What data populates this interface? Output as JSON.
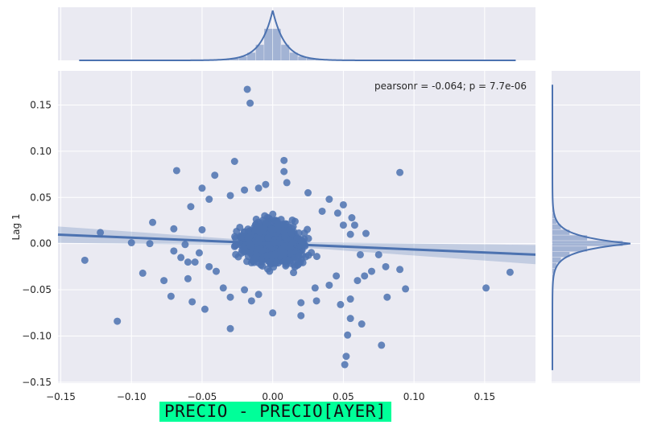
{
  "chart_data": {
    "type": "scatter",
    "annotation": "pearsonr = -0.064; p = 7.7e-06",
    "xlabel": "",
    "ylabel": "Lag 1",
    "xlim": [
      -0.152,
      0.186
    ],
    "ylim": [
      -0.151,
      0.187
    ],
    "x_ticks": [
      -0.15,
      -0.1,
      -0.05,
      0.0,
      0.05,
      0.1,
      0.15
    ],
    "x_tick_labels": [
      "−0.15",
      "−0.10",
      "−0.05",
      "0.00",
      "0.05",
      "0.10",
      "0.15"
    ],
    "y_ticks": [
      -0.15,
      -0.1,
      -0.05,
      0.0,
      0.05,
      0.1,
      0.15
    ],
    "y_tick_labels": [
      "−0.15",
      "−0.10",
      "−0.05",
      "0.00",
      "0.05",
      "0.10",
      "0.15"
    ],
    "grid": true,
    "regression_line": {
      "slope": -0.064,
      "intercept": 0.0,
      "x_range": [
        -0.152,
        0.186
      ]
    },
    "points": [
      [
        -0.018,
        0.167
      ],
      [
        -0.016,
        0.152
      ],
      [
        -0.027,
        0.089
      ],
      [
        0.008,
        0.09
      ],
      [
        0.09,
        0.077
      ],
      [
        -0.068,
        0.079
      ],
      [
        -0.041,
        0.074
      ],
      [
        -0.05,
        0.06
      ],
      [
        -0.045,
        0.048
      ],
      [
        -0.058,
        0.04
      ],
      [
        -0.085,
        0.023
      ],
      [
        -0.07,
        0.016
      ],
      [
        -0.122,
        0.012
      ],
      [
        -0.1,
        0.001
      ],
      [
        -0.087,
        0.0
      ],
      [
        -0.062,
        -0.001
      ],
      [
        -0.07,
        -0.008
      ],
      [
        -0.065,
        -0.015
      ],
      [
        -0.06,
        -0.02
      ],
      [
        -0.133,
        -0.018
      ],
      [
        -0.092,
        -0.032
      ],
      [
        -0.077,
        -0.04
      ],
      [
        -0.06,
        -0.038
      ],
      [
        -0.072,
        -0.057
      ],
      [
        -0.057,
        -0.063
      ],
      [
        -0.048,
        -0.071
      ],
      [
        -0.11,
        -0.084
      ],
      [
        -0.03,
        -0.092
      ],
      [
        0.0,
        -0.075
      ],
      [
        0.02,
        -0.078
      ],
      [
        0.031,
        -0.062
      ],
      [
        0.048,
        -0.066
      ],
      [
        0.055,
        -0.081
      ],
      [
        0.063,
        -0.087
      ],
      [
        0.053,
        -0.099
      ],
      [
        0.052,
        -0.122
      ],
      [
        0.051,
        -0.131
      ],
      [
        0.077,
        -0.11
      ],
      [
        0.081,
        -0.058
      ],
      [
        0.094,
        -0.049
      ],
      [
        0.151,
        -0.048
      ],
      [
        0.168,
        -0.031
      ],
      [
        0.07,
        -0.03
      ],
      [
        0.08,
        -0.025
      ],
      [
        0.09,
        -0.028
      ],
      [
        0.075,
        -0.012
      ],
      [
        0.055,
        0.01
      ],
      [
        0.056,
        0.028
      ],
      [
        0.066,
        0.011
      ],
      [
        0.046,
        0.033
      ],
      [
        0.05,
        0.042
      ],
      [
        0.04,
        0.048
      ],
      [
        0.025,
        0.055
      ],
      [
        0.008,
        0.078
      ],
      [
        -0.01,
        0.06
      ],
      [
        -0.02,
        0.058
      ],
      [
        -0.03,
        0.052
      ],
      [
        0.035,
        0.035
      ],
      [
        0.04,
        -0.045
      ],
      [
        0.03,
        -0.048
      ],
      [
        -0.01,
        -0.055
      ],
      [
        -0.02,
        -0.05
      ],
      [
        -0.035,
        -0.048
      ],
      [
        0.06,
        -0.04
      ],
      [
        0.065,
        -0.035
      ],
      [
        0.045,
        -0.035
      ],
      [
        -0.04,
        -0.03
      ],
      [
        -0.045,
        -0.025
      ],
      [
        0.05,
        0.02
      ],
      [
        -0.05,
        0.015
      ],
      [
        0.062,
        -0.012
      ],
      [
        0.058,
        0.02
      ],
      [
        -0.052,
        -0.01
      ],
      [
        -0.055,
        -0.02
      ],
      [
        0.01,
        0.066
      ],
      [
        -0.005,
        0.064
      ],
      [
        0.02,
        -0.064
      ],
      [
        -0.015,
        -0.062
      ],
      [
        0.055,
        -0.06
      ],
      [
        -0.03,
        -0.058
      ]
    ],
    "marginal_x": {
      "type": "histogram+kde",
      "peak": 0.0
    },
    "marginal_y": {
      "type": "histogram+kde",
      "peak": 0.0
    },
    "colors": {
      "points": "#4c72b0",
      "background": "#eaeaf2",
      "grid": "#ffffff"
    }
  },
  "caption": {
    "text": "PRECIO - PRECIO[AYER]",
    "background": "#00ff99"
  }
}
